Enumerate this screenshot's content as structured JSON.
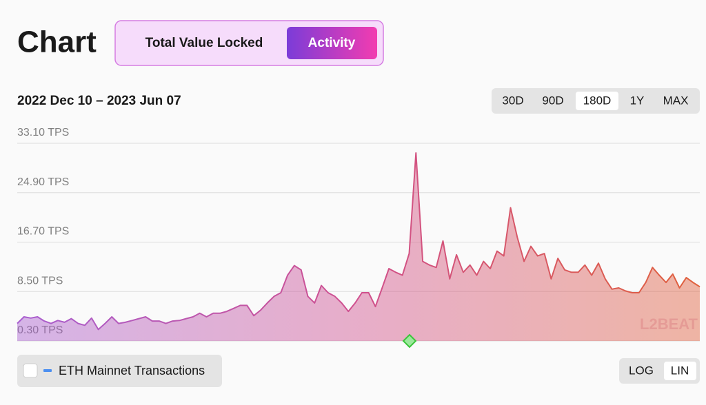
{
  "header": {
    "title": "Chart",
    "tabs": [
      "Total Value Locked",
      "Activity"
    ],
    "active_tab": 1
  },
  "date_range": "2022 Dec 10 – 2023 Jun 07",
  "ranges": [
    "30D",
    "90D",
    "180D",
    "1Y",
    "MAX"
  ],
  "active_range": 2,
  "scales": [
    "LOG",
    "LIN"
  ],
  "active_scale": 1,
  "legend_toggle": {
    "label": "ETH Mainnet Transactions",
    "checked": false,
    "color": "#4c8ff0"
  },
  "watermark": "L2BEAT",
  "chart_data": {
    "type": "area",
    "gradient": [
      "#a85ed0",
      "#d0508e",
      "#e0603c"
    ],
    "ylim": [
      0.3,
      33.1
    ],
    "yticks": [
      {
        "value": 33.1,
        "label": "33.10 TPS"
      },
      {
        "value": 24.9,
        "label": "24.90 TPS"
      },
      {
        "value": 16.7,
        "label": "16.70 TPS"
      },
      {
        "value": 8.5,
        "label": "8.50 TPS"
      },
      {
        "value": 0.3,
        "label": "0.30 TPS"
      }
    ],
    "grid": true,
    "values": [
      3.2,
      4.3,
      4.1,
      4.3,
      3.6,
      3.2,
      3.7,
      3.4,
      4.0,
      3.2,
      2.9,
      4.1,
      2.2,
      3.2,
      4.3,
      3.2,
      3.4,
      3.7,
      4.0,
      4.3,
      3.6,
      3.6,
      3.2,
      3.6,
      3.7,
      4.0,
      4.3,
      4.9,
      4.3,
      4.9,
      4.9,
      5.2,
      5.7,
      6.2,
      6.2,
      4.5,
      5.4,
      6.6,
      7.7,
      8.3,
      11.2,
      12.8,
      12.1,
      7.7,
      6.6,
      9.5,
      8.3,
      7.7,
      6.6,
      5.2,
      6.6,
      8.3,
      8.3,
      6.0,
      9.1,
      12.3,
      11.7,
      11.2,
      14.8,
      31.5,
      13.5,
      12.9,
      12.5,
      16.9,
      10.6,
      14.6,
      11.7,
      12.9,
      11.2,
      13.5,
      12.3,
      15.2,
      14.4,
      22.4,
      17.5,
      13.5,
      16.0,
      14.4,
      14.8,
      10.6,
      14.0,
      12.1,
      11.7,
      11.7,
      12.9,
      11.2,
      13.2,
      10.6,
      8.9,
      9.1,
      8.6,
      8.3,
      8.3,
      10.0,
      12.5,
      11.2,
      10.0,
      11.4,
      9.1,
      10.8,
      10.0,
      9.3
    ]
  }
}
